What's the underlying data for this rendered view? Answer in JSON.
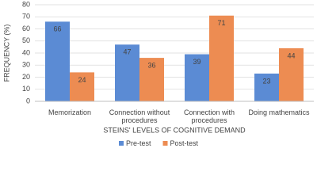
{
  "chart_data": {
    "type": "bar",
    "y_label": "FREQUENCY (%)",
    "x_label": "STEINS' LEVELS OF COGNITIVE DEMAND",
    "categories": [
      "Memorization",
      "Connection without procedures",
      "Connection with procedures",
      "Doing mathematics"
    ],
    "series": [
      {
        "name": "Pre-test",
        "color": "#5b8bd4",
        "values": [
          66,
          47,
          39,
          23
        ]
      },
      {
        "name": "Post-test",
        "color": "#ed8c52",
        "values": [
          24,
          36,
          71,
          44
        ]
      }
    ],
    "ylim": [
      0,
      80
    ],
    "yticks": [
      0,
      10,
      20,
      30,
      40,
      50,
      60,
      70,
      80
    ],
    "grid": true,
    "legend": "bottom"
  }
}
